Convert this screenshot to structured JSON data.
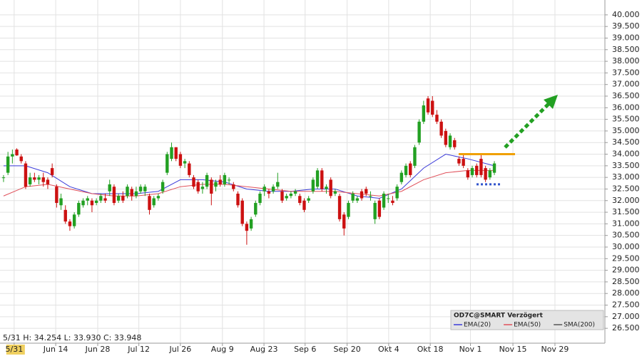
{
  "chart_data": {
    "type": "candlestick",
    "info": "5/31 H: 34.254 L: 33.930 C: 33.948",
    "legend_title": "OD7C@SMART Verzögert",
    "xlim": [
      -0.8,
      136
    ],
    "ylim": [
      25.86,
      40.64
    ],
    "grid": true,
    "up_color": "#22a022",
    "down_color": "#cc1111",
    "xticks": [
      {
        "value": 2.4,
        "label": "5/31"
      },
      {
        "value": 11.8,
        "label": "Jun 14"
      },
      {
        "value": 21.3,
        "label": "Jun 28"
      },
      {
        "value": 30.6,
        "label": "Jul 12"
      },
      {
        "value": 40,
        "label": "Jul 26"
      },
      {
        "value": 49.5,
        "label": "Aug 9"
      },
      {
        "value": 58.9,
        "label": "Aug 23"
      },
      {
        "value": 68.2,
        "label": "Sep 6"
      },
      {
        "value": 77.7,
        "label": "Sep 20"
      },
      {
        "value": 87.1,
        "label": "Okt 4"
      },
      {
        "value": 96.5,
        "label": "Okt 18"
      },
      {
        "value": 105.6,
        "label": "Nov 1"
      },
      {
        "value": 115.2,
        "label": "Nov 15"
      },
      {
        "value": 124.7,
        "label": "Nov 29"
      }
    ],
    "yticks": [
      {
        "value": 26.5,
        "label": "26.500"
      },
      {
        "value": 27,
        "label": "27.000"
      },
      {
        "value": 27.5,
        "label": "27.500"
      },
      {
        "value": 28,
        "label": "28.000"
      },
      {
        "value": 28.5,
        "label": "28.500"
      },
      {
        "value": 29,
        "label": "29.000"
      },
      {
        "value": 29.5,
        "label": "29.500"
      },
      {
        "value": 30,
        "label": "30.000"
      },
      {
        "value": 30.5,
        "label": "30.500"
      },
      {
        "value": 31,
        "label": "31.000"
      },
      {
        "value": 31.5,
        "label": "31.500"
      },
      {
        "value": 32,
        "label": "32.000"
      },
      {
        "value": 32.5,
        "label": "32.500"
      },
      {
        "value": 33,
        "label": "33.000"
      },
      {
        "value": 33.5,
        "label": "33.500"
      },
      {
        "value": 34,
        "label": "34.000"
      },
      {
        "value": 34.5,
        "label": "34.500"
      },
      {
        "value": 35,
        "label": "35.000"
      },
      {
        "value": 35.5,
        "label": "35.500"
      },
      {
        "value": 36,
        "label": "36.000"
      },
      {
        "value": 36.5,
        "label": "36.500"
      },
      {
        "value": 37,
        "label": "37.000"
      },
      {
        "value": 37.5,
        "label": "37.500"
      },
      {
        "value": 38,
        "label": "38.000"
      },
      {
        "value": 38.5,
        "label": "38.500"
      },
      {
        "value": 39,
        "label": "39.000"
      },
      {
        "value": 39.5,
        "label": "39.500"
      },
      {
        "value": 40,
        "label": "40.000"
      }
    ],
    "open": [
      33.0,
      33.2,
      33.9,
      34.2,
      33.9,
      33.6,
      32.7,
      33.0,
      32.9,
      33.0,
      32.9,
      33.4,
      32.6,
      31.8,
      31.6,
      31.1,
      30.9,
      31.4,
      31.8,
      32.0,
      32.0,
      31.9,
      32.0,
      32.1,
      32.4,
      32.6,
      32.0,
      32.2,
      32.2,
      32.5,
      32.2,
      32.4,
      32.4,
      32.2,
      31.8,
      32.1,
      32.4,
      33.2,
      33.8,
      34.3,
      34.0,
      33.6,
      33.6,
      33.0,
      32.8,
      32.5,
      32.6,
      32.9,
      32.6,
      32.9,
      32.7,
      32.9,
      32.7,
      32.3,
      32.0,
      31.0,
      30.8,
      31.4,
      31.9,
      32.4,
      32.4,
      32.4,
      32.6,
      32.4,
      32.1,
      32.2,
      32.3,
      32.2,
      32.0,
      32.0,
      32.4,
      32.6,
      33.3,
      32.5,
      32.9,
      32.3,
      32.2,
      31.4,
      31.3,
      32.0,
      32.0,
      32.4,
      32.5,
      32.2,
      31.2,
      32.0,
      31.7,
      32.1,
      32.0,
      32.1,
      32.8,
      33.1,
      33.6,
      33.5,
      34.5,
      35.4,
      36.4,
      36.3,
      35.7,
      35.4,
      35.0,
      34.3,
      34.6,
      33.8,
      33.8,
      33.3,
      33.1,
      33.5,
      33.8,
      33.4,
      33.0,
      33.2
    ],
    "high": [
      33.1,
      34.1,
      34.2,
      34.254,
      34.0,
      33.7,
      33.2,
      33.2,
      33.1,
      33.2,
      33.0,
      33.6,
      32.7,
      32.3,
      31.8,
      31.2,
      31.5,
      32.0,
      32.1,
      32.2,
      32.1,
      32.1,
      32.3,
      32.3,
      32.9,
      32.7,
      32.3,
      32.4,
      32.7,
      32.6,
      32.6,
      32.7,
      32.7,
      32.3,
      32.2,
      32.3,
      32.9,
      34.1,
      34.5,
      34.3,
      34.1,
      33.8,
      33.7,
      33.1,
      32.9,
      32.8,
      33.2,
      33.0,
      32.9,
      33.1,
      33.2,
      33.0,
      32.8,
      32.4,
      32.1,
      31.1,
      31.3,
      32.0,
      32.4,
      32.7,
      32.5,
      32.7,
      33.2,
      32.5,
      32.3,
      32.4,
      32.5,
      32.3,
      32.1,
      32.2,
      33.0,
      33.4,
      33.4,
      32.7,
      33.0,
      32.5,
      32.3,
      31.5,
      32.0,
      32.4,
      32.2,
      32.5,
      32.6,
      32.4,
      32.0,
      32.1,
      32.4,
      32.3,
      32.2,
      32.7,
      33.3,
      33.6,
      33.7,
      34.4,
      35.5,
      36.3,
      36.5,
      36.5,
      35.9,
      35.5,
      35.1,
      34.9,
      34.7,
      33.9,
      34.0,
      33.4,
      33.5,
      33.6,
      34.0,
      33.5,
      33.4,
      33.7
    ],
    "low": [
      32.8,
      33.1,
      33.6,
      33.93,
      33.6,
      32.5,
      32.6,
      32.8,
      32.7,
      32.6,
      32.5,
      33.0,
      31.7,
      31.6,
      31.0,
      30.7,
      30.8,
      31.3,
      31.7,
      31.8,
      31.5,
      31.8,
      31.9,
      31.9,
      32.2,
      31.8,
      31.9,
      31.9,
      32.1,
      32.0,
      32.1,
      32.3,
      32.2,
      31.4,
      31.7,
      32.0,
      32.3,
      33.1,
      33.7,
      33.7,
      33.4,
      33.4,
      33.0,
      32.5,
      32.3,
      32.3,
      32.5,
      31.8,
      32.4,
      32.6,
      32.6,
      32.7,
      32.4,
      31.7,
      30.9,
      30.1,
      30.7,
      31.3,
      31.8,
      32.2,
      32.1,
      32.3,
      32.5,
      31.9,
      32.0,
      32.1,
      32.2,
      31.8,
      31.5,
      31.9,
      32.3,
      32.5,
      32.4,
      32.3,
      32.1,
      32.2,
      31.1,
      30.5,
      31.2,
      31.9,
      31.9,
      32.0,
      32.2,
      32.0,
      31.0,
      31.2,
      31.6,
      31.9,
      31.8,
      32.0,
      32.7,
      33.0,
      33.0,
      33.4,
      34.4,
      35.3,
      35.7,
      35.6,
      35.3,
      34.7,
      34.3,
      34.2,
      34.2,
      33.5,
      33.4,
      32.9,
      33.0,
      33.0,
      33.0,
      32.8,
      32.9,
      33.1
    ],
    "close": [
      33.0,
      33.9,
      34.0,
      33.948,
      33.7,
      32.6,
      33.0,
      32.9,
      33.0,
      32.8,
      32.7,
      33.1,
      31.9,
      32.1,
      31.1,
      30.9,
      31.4,
      31.9,
      32.0,
      32.1,
      31.8,
      32.0,
      32.2,
      32.0,
      32.7,
      31.9,
      32.2,
      32.0,
      32.6,
      32.2,
      32.4,
      32.6,
      32.6,
      31.6,
      32.1,
      32.2,
      32.8,
      34.0,
      34.3,
      33.8,
      33.5,
      33.7,
      33.1,
      32.6,
      32.4,
      32.6,
      33.1,
      32.3,
      32.8,
      32.7,
      33.1,
      32.9,
      32.5,
      31.8,
      31.0,
      30.7,
      31.2,
      31.9,
      32.3,
      32.6,
      32.3,
      32.6,
      32.8,
      32.0,
      32.2,
      32.3,
      32.4,
      31.9,
      31.6,
      32.1,
      32.9,
      33.3,
      32.5,
      32.6,
      32.2,
      32.4,
      31.2,
      30.8,
      31.9,
      32.3,
      32.1,
      32.1,
      32.3,
      32.2,
      31.9,
      31.3,
      32.3,
      32.1,
      31.9,
      32.6,
      33.2,
      33.5,
      33.1,
      34.3,
      35.4,
      36.1,
      35.8,
      35.7,
      35.4,
      34.8,
      34.4,
      34.8,
      34.3,
      33.6,
      33.5,
      33.0,
      33.4,
      33.1,
      33.1,
      32.9,
      33.3,
      33.6
    ],
    "series": [
      {
        "name": "EMA(20)",
        "color": "#3b3bd9",
        "x": [
          0,
          5,
          10,
          15,
          20,
          25,
          30,
          35,
          40,
          45,
          50,
          55,
          60,
          65,
          70,
          75,
          80,
          85,
          90,
          95,
          100,
          105,
          111
        ],
        "values": [
          33.5,
          33.5,
          33.2,
          32.6,
          32.3,
          32.3,
          32.3,
          32.4,
          32.9,
          32.9,
          32.8,
          32.5,
          32.4,
          32.4,
          32.5,
          32.5,
          32.2,
          32.1,
          32.5,
          33.4,
          34.0,
          33.8,
          33.5
        ]
      },
      {
        "name": "EMA(50)",
        "color": "#e0505a",
        "x": [
          0,
          5,
          10,
          15,
          20,
          25,
          30,
          35,
          40,
          45,
          50,
          55,
          60,
          65,
          70,
          75,
          80,
          85,
          90,
          95,
          100,
          105,
          111
        ],
        "values": [
          32.2,
          32.6,
          32.7,
          32.5,
          32.3,
          32.2,
          32.2,
          32.3,
          32.6,
          32.7,
          32.7,
          32.6,
          32.5,
          32.4,
          32.4,
          32.4,
          32.3,
          32.2,
          32.4,
          32.9,
          33.2,
          33.3,
          33.3
        ]
      },
      {
        "name": "SMA(200)",
        "color": "#555555"
      }
    ],
    "levels": [
      {
        "value": 34.0,
        "color": "#f0a000"
      },
      {
        "value": 32.7,
        "color": "#3355cc"
      }
    ]
  }
}
